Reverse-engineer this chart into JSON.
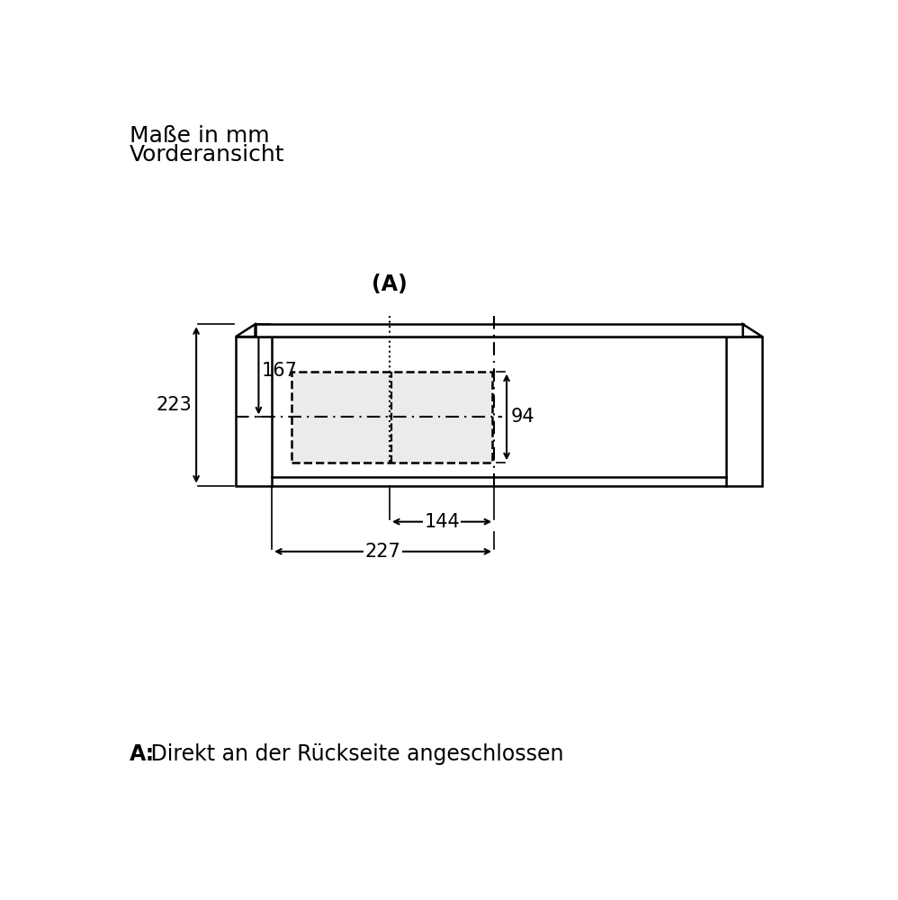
{
  "title_line1": "Maße in mm",
  "title_line2": "Vorderansicht",
  "footer_bold": "A:",
  "footer_rest": " Direkt an der Rückseite angeschlossen",
  "dim_223": "223",
  "dim_167": "167",
  "dim_94": "94",
  "dim_144": "144",
  "dim_227": "227",
  "label_A": "(A)",
  "bg_color": "#ffffff",
  "line_color": "#000000",
  "dash_box_fill": "#ebebeb",
  "title_fontsize": 18,
  "footer_fontsize": 17,
  "dim_fontsize": 15
}
